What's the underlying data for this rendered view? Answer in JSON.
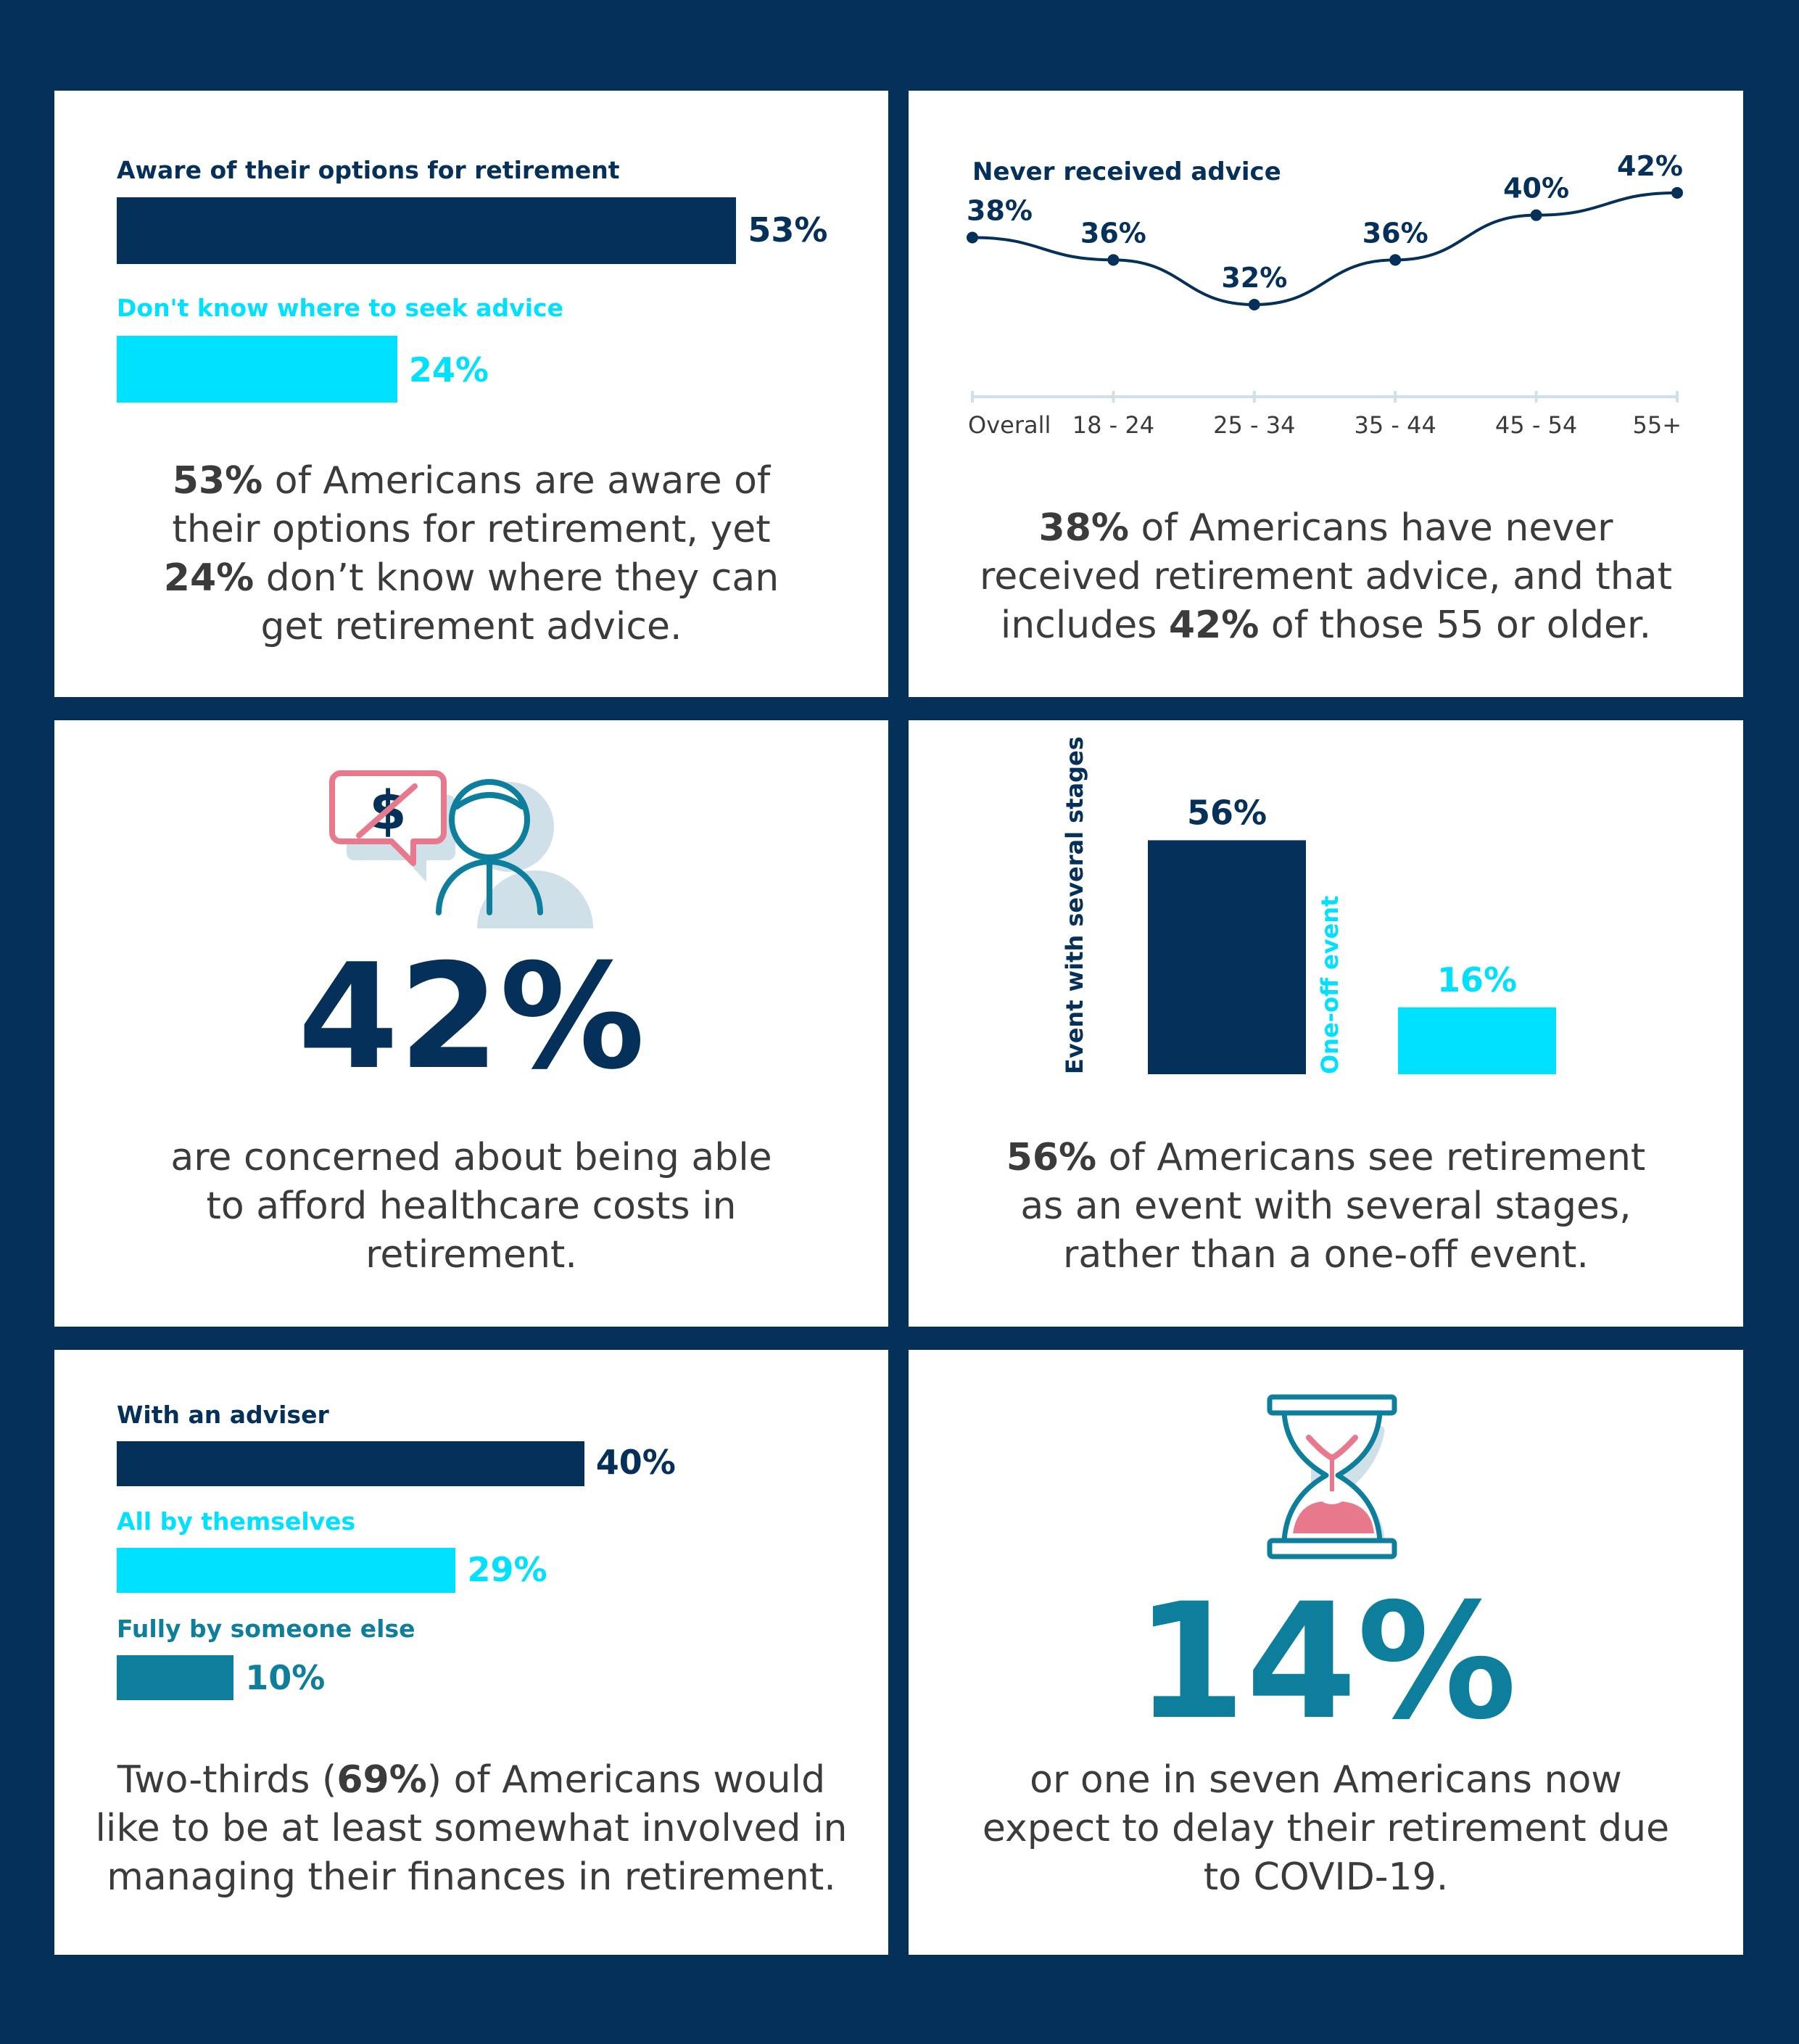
{
  "colors": {
    "navy": "#04305a",
    "cyan": "#00e0ff",
    "teal": "#0d7f9c",
    "pink": "#e8798d",
    "grey": "#3b3b3b",
    "shadow": "#cfe0e8"
  },
  "panel1": {
    "caption_parts": [
      "53%",
      " of Americans are aware of their options for retirement, yet ",
      "24%",
      " don’t know where they can get retirement advice."
    ]
  },
  "panel2": {
    "caption_parts": [
      "38%",
      " of Americans have never received retirement advice, and that includes ",
      "42%",
      " of those 55 or older."
    ]
  },
  "panel3": {
    "icon": "healthcare-cost-concern-icon",
    "big_value": "42%",
    "caption": "are concerned about being able to afford healthcare costs in retirement."
  },
  "panel4": {
    "caption_parts": [
      "56%",
      " of Americans see retirement as an event with several stages, rather than a one-off event."
    ]
  },
  "panel5": {
    "caption_parts": [
      "Two-thirds (",
      "69%",
      ") of Americans would like to be at least somewhat involved in managing their finances in retirement."
    ]
  },
  "panel6": {
    "icon": "hourglass-icon",
    "big_value": "14%",
    "caption": "or one in seven Americans now expect to delay their retirement due to COVID-19."
  },
  "chart_data": [
    {
      "type": "bar",
      "orientation": "horizontal",
      "categories": [
        "Aware of their options for retirement",
        "Don't know where to seek advice"
      ],
      "values": [
        53,
        24
      ],
      "value_labels": [
        "53%",
        "24%"
      ],
      "colors": [
        "#04305a",
        "#00e0ff"
      ],
      "xlim": [
        0,
        100
      ]
    },
    {
      "type": "line",
      "title": "Never received advice",
      "categories": [
        "Overall",
        "18 - 24",
        "25 - 34",
        "35 - 44",
        "45 - 54",
        "55+"
      ],
      "values": [
        38,
        36,
        32,
        36,
        40,
        42
      ],
      "value_labels": [
        "38%",
        "36%",
        "32%",
        "36%",
        "40%",
        "42%"
      ],
      "ylim": [
        20,
        44
      ],
      "color": "#04305a"
    },
    {
      "type": "bar",
      "orientation": "vertical",
      "categories": [
        "Event with several stages",
        "One-off event"
      ],
      "values": [
        56,
        16
      ],
      "value_labels": [
        "56%",
        "16%"
      ],
      "colors": [
        "#04305a",
        "#00e0ff"
      ],
      "ylim": [
        0,
        100
      ]
    },
    {
      "type": "bar",
      "orientation": "horizontal",
      "categories": [
        "With an adviser",
        "All by themselves",
        "Fully by someone else"
      ],
      "values": [
        40,
        29,
        10
      ],
      "value_labels": [
        "40%",
        "29%",
        "10%"
      ],
      "colors": [
        "#04305a",
        "#00e0ff",
        "#0d7f9c"
      ],
      "xlim": [
        0,
        100
      ]
    }
  ]
}
